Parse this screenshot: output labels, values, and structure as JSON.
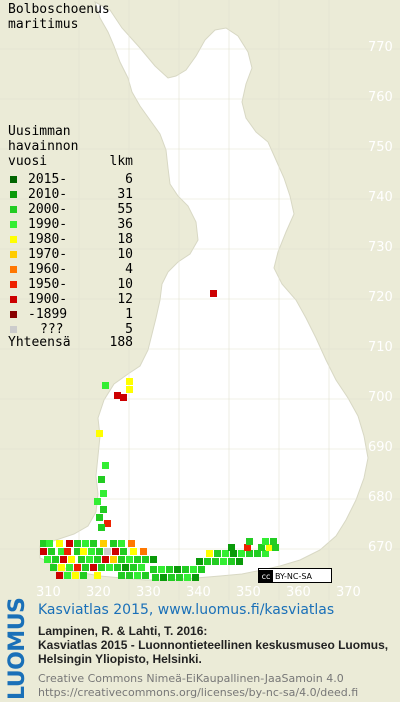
{
  "species": {
    "line1": "Bolboschoenus",
    "line2": "maritimus"
  },
  "legend": {
    "title": [
      "Uusimman",
      "havainnon",
      "vuosi"
    ],
    "count_header": "lkm",
    "items": [
      {
        "label": "2015-",
        "count": "6",
        "color": "#006400"
      },
      {
        "label": "2010-",
        "count": "31",
        "color": "#0a9a0a"
      },
      {
        "label": "2000-",
        "count": "55",
        "color": "#22cc22"
      },
      {
        "label": "1990-",
        "count": "36",
        "color": "#33ee33"
      },
      {
        "label": "1980-",
        "count": "18",
        "color": "#ffff00"
      },
      {
        "label": "1970-",
        "count": "10",
        "color": "#ffcc00"
      },
      {
        "label": "1960-",
        "count": "4",
        "color": "#ff7700"
      },
      {
        "label": "1950-",
        "count": "10",
        "color": "#ee2200"
      },
      {
        "label": "1900-",
        "count": "12",
        "color": "#cc0000"
      },
      {
        "label": "-1899",
        "count": "1",
        "color": "#880000"
      },
      {
        "label": "???",
        "count": "5",
        "color": "#cccccc"
      }
    ],
    "total_label": "Yhteensä",
    "total_count": "188"
  },
  "map": {
    "land_color": "#ffffff",
    "background_color": "#ebebd7",
    "y_axis_labels": [
      "770",
      "760",
      "750",
      "740",
      "730",
      "720",
      "710",
      "700",
      "690",
      "680",
      "670"
    ],
    "x_axis_labels": [
      "310",
      "320",
      "330",
      "340",
      "350",
      "360",
      "370"
    ]
  },
  "license_badge": {
    "cc": "cc",
    "text": "BY-NC-SA"
  },
  "brand": "LUOMUS",
  "atlas_title": "Kasviatlas 2015, www.luomus.fi/kasviatlas",
  "citation": {
    "line1": "Lampinen, R. & Lahti, T. 2016:",
    "line2": "Kasviatlas 2015 - Luonnontieteellinen keskusmuseo Luomus,",
    "line3": "Helsingin Yliopisto, Helsinki."
  },
  "license": {
    "line1": "Creative Commons Nimeä-EiKaupallinen-JaaSamoin 4.0",
    "line2": "https://creativecommons.org/licenses/by-nc-sa/4.0/deed.fi"
  }
}
